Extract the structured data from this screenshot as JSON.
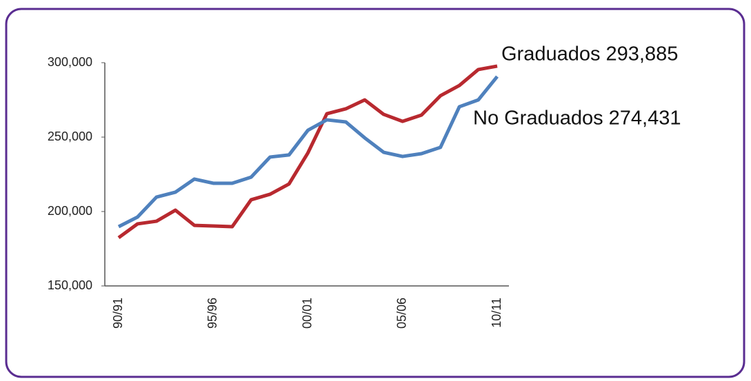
{
  "chart_data": {
    "type": "line",
    "categories": [
      "90/91",
      null,
      null,
      null,
      null,
      "95/96",
      null,
      null,
      null,
      null,
      "00/01",
      null,
      null,
      null,
      null,
      "05/06",
      null,
      null,
      null,
      null,
      "10/11"
    ],
    "series": [
      {
        "color": "#b8292f",
        "values": [
          182400,
          191700,
          193500,
          200900,
          190700,
          190300,
          189800,
          207900,
          211600,
          218500,
          239400,
          265700,
          269000,
          275000,
          265300,
          260600,
          264800,
          277800,
          284700,
          295400,
          297700
        ]
      },
      {
        "color": "#4f81bd",
        "values": [
          189800,
          196300,
          209700,
          213000,
          221800,
          219000,
          219000,
          223100,
          236600,
          238000,
          254600,
          261600,
          260200,
          249500,
          239800,
          237000,
          238900,
          243100,
          270400,
          275000,
          290700
        ]
      }
    ],
    "annotations": [
      "Graduados  293,885",
      "No Graduados 274,431"
    ],
    "ylim": [
      150000,
      300000
    ],
    "yticks": [
      {
        "value": 150000,
        "label": "150,000"
      },
      {
        "value": 200000,
        "label": "200,000"
      },
      {
        "value": 250000,
        "label": "250,000"
      },
      {
        "value": 300000,
        "label": "300,000"
      }
    ],
    "grid": false
  }
}
